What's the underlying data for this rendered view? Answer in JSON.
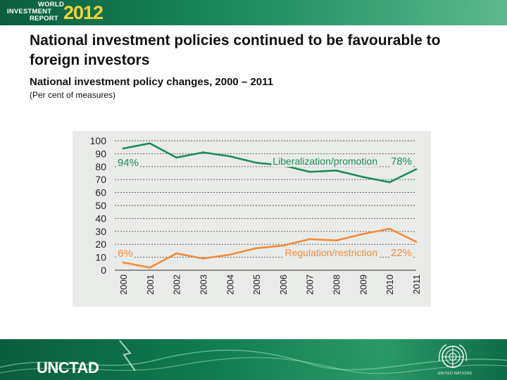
{
  "header": {
    "logo_line1": "WORLD",
    "logo_line2": "INVESTMENT",
    "logo_line3": "REPORT",
    "logo_year": "2012"
  },
  "slide": {
    "title": "National investment policies continued to be favourable to foreign investors",
    "subtitle": "National investment policy changes, 2000 – 2011",
    "note": "(Per cent of measures)"
  },
  "footer": {
    "brand": "UNCTAD",
    "emblem_caption": "UNITED NATIONS"
  },
  "colors": {
    "topbar": "#1c8a5c",
    "liberalization": "#1e8c57",
    "regulation": "#f08c3e",
    "gridline": "#555555",
    "panel": "#e9ebe8"
  },
  "chart_data": {
    "type": "line",
    "x": [
      "2000",
      "2001",
      "2002",
      "2003",
      "2004",
      "2005",
      "2006",
      "2007",
      "2008",
      "2009",
      "2010",
      "2011"
    ],
    "ylim": [
      0,
      100
    ],
    "yticks": [
      0,
      10,
      20,
      30,
      40,
      50,
      60,
      70,
      80,
      90,
      100
    ],
    "grid": true,
    "series": [
      {
        "name": "Liberalization/promotion",
        "values": [
          94,
          98,
          87,
          91,
          88,
          83,
          81,
          76,
          77,
          72,
          68,
          78
        ],
        "start_label": "94%",
        "end_label": "78%"
      },
      {
        "name": "Regulation/restriction",
        "values": [
          6,
          2,
          13,
          9,
          12,
          17,
          19,
          24,
          23,
          28,
          32,
          22
        ],
        "start_label": "6%",
        "end_label": "22%"
      }
    ]
  }
}
